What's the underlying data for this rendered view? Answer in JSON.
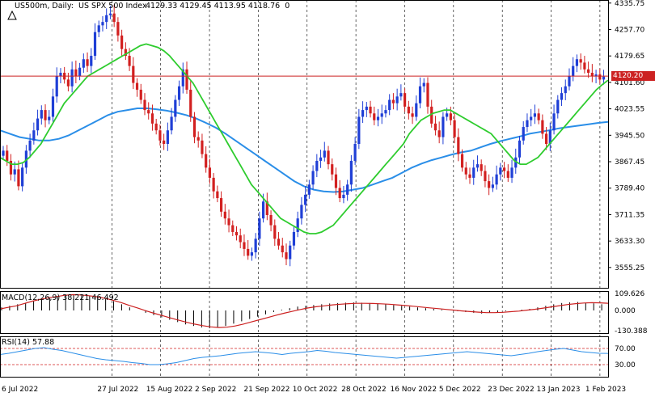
{
  "header": {
    "symbol_info": "US500m, Daily:  US SPX 500 Index",
    "ohlc": "4129.33 4129.45 4113.95 4118.76  0"
  },
  "indicators": {
    "macd_label": "MACD(12,26,9) 38.221 46.492",
    "rsi_label": "RSI(14) 57.88"
  },
  "current_price": "4120.20",
  "colors": {
    "bull": "#1f3fd6",
    "bear": "#d22020",
    "ma_fast": "#2ecc2e",
    "ma_slow": "#2a8ee8",
    "macd_signal": "#cc2020",
    "price_line": "#cc2222",
    "rsi_line": "#2a8ee8"
  },
  "chart_data": {
    "type": "candlestick",
    "price_axis": {
      "ticks": [
        "4335.75",
        "4257.70",
        "4179.65",
        "4101.60",
        "4023.55",
        "3945.50",
        "3867.45",
        "3789.40",
        "3711.35",
        "3633.30",
        "3555.25"
      ],
      "range": [
        3500,
        4340
      ]
    },
    "macd_axis": {
      "ticks": [
        "109.626",
        "0.000",
        "-130.388"
      ],
      "range": [
        -130.388,
        109.626
      ]
    },
    "rsi_axis": {
      "ticks": [
        "70.00",
        "30.00"
      ],
      "levels": [
        70,
        30
      ],
      "range": [
        0,
        100
      ]
    },
    "date_labels": [
      "6 Jul 2022",
      "27 Jul 2022",
      "15 Aug 2022",
      "2 Sep 2022",
      "21 Sep 2022",
      "10 Oct 2022",
      "28 Oct 2022",
      "16 Nov 2022",
      "5 Dec 2022",
      "23 Dec 2022",
      "13 Jan 2023",
      "1 Feb 2023"
    ],
    "closes": [
      3900,
      3870,
      3830,
      3845,
      3795,
      3850,
      3900,
      3930,
      3960,
      3995,
      4020,
      3990,
      4000,
      4060,
      4120,
      4130,
      4110,
      4090,
      4140,
      4120,
      4145,
      4170,
      4150,
      4180,
      4250,
      4270,
      4280,
      4300,
      4305,
      4280,
      4240,
      4200,
      4180,
      4150,
      4100,
      4080,
      4050,
      4020,
      4010,
      3980,
      3960,
      3930,
      3920,
      3960,
      4000,
      4050,
      4090,
      4140,
      4080,
      4000,
      3940,
      3930,
      3890,
      3850,
      3820,
      3780,
      3760,
      3720,
      3700,
      3680,
      3660,
      3650,
      3630,
      3610,
      3590,
      3600,
      3640,
      3700,
      3750,
      3710,
      3680,
      3640,
      3620,
      3600,
      3580,
      3620,
      3660,
      3700,
      3740,
      3770,
      3800,
      3840,
      3870,
      3880,
      3900,
      3860,
      3830,
      3790,
      3760,
      3770,
      3800,
      3870,
      3920,
      4000,
      4020,
      4030,
      4010,
      3990,
      4000,
      4010,
      4020,
      4050,
      4040,
      4060,
      4070,
      4030,
      4010,
      4000,
      4040,
      4090,
      4100,
      4030,
      3980,
      3960,
      3940,
      4000,
      4010,
      3990,
      3940,
      3890,
      3850,
      3830,
      3820,
      3850,
      3860,
      3840,
      3810,
      3790,
      3800,
      3830,
      3850,
      3840,
      3820,
      3850,
      3880,
      3930,
      3970,
      3990,
      4000,
      4010,
      3990,
      3950,
      3920,
      3960,
      4010,
      4050,
      4070,
      4090,
      4120,
      4150,
      4170,
      4160,
      4140,
      4130,
      4120,
      4125,
      4110,
      4118.76
    ],
    "ma_fast": [
      3880,
      3870,
      3860,
      3860,
      3865,
      3880,
      3900,
      3920,
      3950,
      3980,
      4010,
      4040,
      4060,
      4080,
      4100,
      4120,
      4130,
      4140,
      4150,
      4160,
      4170,
      4180,
      4190,
      4200,
      4210,
      4215,
      4210,
      4205,
      4195,
      4180,
      4160,
      4140,
      4120,
      4100,
      4070,
      4040,
      4010,
      3980,
      3950,
      3920,
      3890,
      3860,
      3830,
      3800,
      3780,
      3760,
      3740,
      3720,
      3700,
      3690,
      3680,
      3670,
      3660,
      3655,
      3655,
      3660,
      3670,
      3680,
      3700,
      3720,
      3740,
      3760,
      3780,
      3800,
      3820,
      3840,
      3860,
      3880,
      3900,
      3920,
      3950,
      3970,
      3990,
      4000,
      4010,
      4015,
      4020,
      4020,
      4010,
      4000,
      3990,
      3980,
      3970,
      3960,
      3950,
      3930,
      3910,
      3890,
      3870,
      3860,
      3860,
      3870,
      3880,
      3900,
      3920,
      3940,
      3960,
      3980,
      4000,
      4020,
      4040,
      4060,
      4080,
      4095,
      4108
    ],
    "ma_slow": [
      3960,
      3950,
      3940,
      3935,
      3930,
      3930,
      3935,
      3945,
      3960,
      3975,
      3990,
      4005,
      4015,
      4020,
      4025,
      4025,
      4022,
      4018,
      4012,
      4005,
      3995,
      3982,
      3968,
      3950,
      3930,
      3910,
      3890,
      3870,
      3850,
      3830,
      3810,
      3795,
      3785,
      3780,
      3778,
      3780,
      3785,
      3790,
      3800,
      3810,
      3820,
      3835,
      3850,
      3862,
      3872,
      3880,
      3888,
      3895,
      3900,
      3910,
      3920,
      3928,
      3935,
      3942,
      3950,
      3955,
      3960,
      3966,
      3970,
      3974,
      3978,
      3982,
      3985
    ],
    "macd_histogram": [
      20,
      30,
      40,
      50,
      60,
      70,
      80,
      90,
      100,
      105,
      100,
      95,
      85,
      75,
      60,
      40,
      20,
      0,
      -15,
      -30,
      -45,
      -60,
      -75,
      -90,
      -100,
      -110,
      -115,
      -110,
      -100,
      -85,
      -70,
      -55,
      -40,
      -25,
      -10,
      5,
      15,
      25,
      30,
      35,
      40,
      45,
      48,
      50,
      52,
      50,
      48,
      45,
      40,
      35,
      30,
      25,
      20,
      15,
      10,
      5,
      0,
      -5,
      -10,
      -15,
      -20,
      -15,
      -10,
      -5,
      0,
      5,
      10,
      20,
      30,
      40,
      48,
      52,
      55,
      50,
      46,
      40
    ],
    "macd_signal_line": [
      10,
      20,
      30,
      45,
      60,
      72,
      82,
      90,
      98,
      102,
      100,
      95,
      88,
      78,
      65,
      50,
      32,
      15,
      -2,
      -18,
      -33,
      -48,
      -62,
      -76,
      -88,
      -98,
      -106,
      -110,
      -108,
      -100,
      -88,
      -74,
      -60,
      -46,
      -32,
      -18,
      -6,
      6,
      16,
      24,
      30,
      36,
      40,
      44,
      46,
      46,
      45,
      43,
      40,
      36,
      32,
      27,
      22,
      17,
      12,
      7,
      2,
      -3,
      -7,
      -11,
      -14,
      -14,
      -12,
      -8,
      -4,
      2,
      8,
      15,
      23,
      31,
      38,
      44,
      48,
      50,
      49,
      46.492
    ],
    "rsi": [
      55,
      58,
      62,
      66,
      70,
      72,
      68,
      65,
      60,
      55,
      50,
      45,
      42,
      40,
      38,
      35,
      33,
      30,
      30,
      32,
      35,
      40,
      45,
      48,
      50,
      52,
      55,
      58,
      60,
      62,
      60,
      58,
      55,
      58,
      60,
      62,
      65,
      63,
      60,
      58,
      56,
      54,
      52,
      50,
      48,
      46,
      48,
      50,
      52,
      54,
      56,
      58,
      60,
      62,
      60,
      58,
      56,
      54,
      52,
      55,
      58,
      62,
      65,
      68,
      70,
      66,
      62,
      60,
      58,
      57.88
    ]
  }
}
